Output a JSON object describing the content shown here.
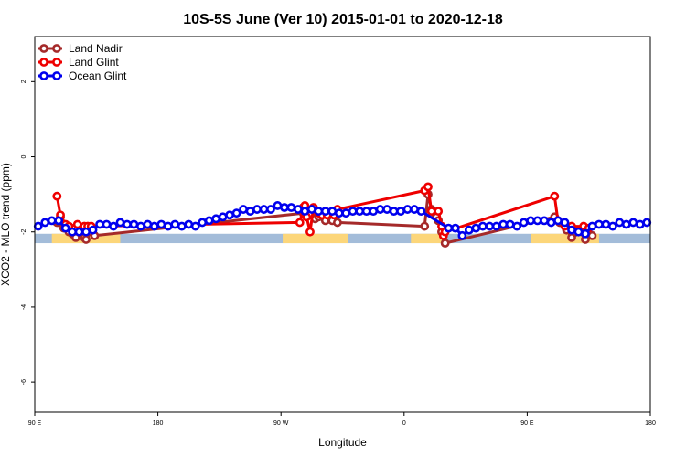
{
  "chart_data": {
    "type": "line",
    "title": "10S-5S June (Ver 10)   2015-01-01 to 2020-12-18",
    "xlabel": "Longitude",
    "ylabel": "XCO2 - MLO trend (ppm)",
    "xlim": [
      90,
      450
    ],
    "ylim": [
      -6.8,
      3.2
    ],
    "x_ticks": [
      {
        "value": 90,
        "label": "90 E"
      },
      {
        "value": 162,
        "label": "180"
      },
      {
        "value": 234,
        "label": "90 W"
      },
      {
        "value": 306,
        "label": "0"
      },
      {
        "value": 378,
        "label": "90 E"
      },
      {
        "value": 450,
        "label": "180"
      }
    ],
    "y_ticks": [
      {
        "value": 2,
        "label": "2"
      },
      {
        "value": 0,
        "label": "0"
      },
      {
        "value": -2,
        "label": "-2"
      },
      {
        "value": -4,
        "label": "-4"
      },
      {
        "value": -6,
        "label": "-6"
      }
    ],
    "legend_position": "top-left",
    "grid": false,
    "land_band": {
      "y_top": -2.05,
      "y_bottom": -2.3,
      "ocean_color": "#a3bcd9",
      "land_color": "#fcd67a",
      "land_segments": [
        [
          100,
          140
        ],
        [
          235,
          273
        ],
        [
          310,
          330
        ],
        [
          380,
          420
        ]
      ]
    },
    "series": [
      {
        "name": "Land Nadir",
        "color": "#a52a2a",
        "points": [
          [
            103,
            -1.75
          ],
          [
            104,
            -1.75
          ],
          [
            105,
            -1.6
          ],
          [
            107,
            -1.9
          ],
          [
            110,
            -2.0
          ],
          [
            112,
            -2.05
          ],
          [
            114,
            -2.15
          ],
          [
            119,
            -2.15
          ],
          [
            120,
            -2.2
          ],
          [
            123,
            -2.0
          ],
          [
            125,
            -2.1
          ],
          [
            247,
            -1.5
          ],
          [
            251,
            -1.55
          ],
          [
            254,
            -1.65
          ],
          [
            256,
            -1.6
          ],
          [
            260,
            -1.7
          ],
          [
            264,
            -1.7
          ],
          [
            267,
            -1.75
          ],
          [
            318,
            -1.85
          ],
          [
            320,
            -1.0
          ],
          [
            322,
            -1.4
          ],
          [
            324,
            -1.5
          ],
          [
            325,
            -1.6
          ],
          [
            326,
            -1.7
          ],
          [
            328,
            -2.0
          ],
          [
            330,
            -2.3
          ],
          [
            394,
            -1.6
          ],
          [
            397,
            -1.75
          ],
          [
            401,
            -1.95
          ],
          [
            404,
            -2.15
          ],
          [
            410,
            -2.0
          ],
          [
            412,
            -2.2
          ],
          [
            416,
            -2.1
          ]
        ]
      },
      {
        "name": "Land Glint",
        "color": "#ee0000",
        "points": [
          [
            103,
            -1.05
          ],
          [
            105,
            -1.55
          ],
          [
            108,
            -1.8
          ],
          [
            110,
            -1.85
          ],
          [
            115,
            -1.8
          ],
          [
            119,
            -1.85
          ],
          [
            121,
            -1.85
          ],
          [
            123,
            -1.85
          ],
          [
            245,
            -1.75
          ],
          [
            247,
            -1.35
          ],
          [
            248,
            -1.3
          ],
          [
            249,
            -1.6
          ],
          [
            251,
            -2.0
          ],
          [
            253,
            -1.35
          ],
          [
            256,
            -1.5
          ],
          [
            258,
            -1.55
          ],
          [
            261,
            -1.55
          ],
          [
            265,
            -1.55
          ],
          [
            267,
            -1.4
          ],
          [
            318,
            -0.9
          ],
          [
            320,
            -0.8
          ],
          [
            322,
            -1.45
          ],
          [
            326,
            -1.45
          ],
          [
            328,
            -1.85
          ],
          [
            329,
            -2.1
          ],
          [
            330,
            -2.0
          ],
          [
            394,
            -1.05
          ],
          [
            396,
            -1.7
          ],
          [
            400,
            -1.85
          ],
          [
            404,
            -1.85
          ],
          [
            411,
            -1.85
          ],
          [
            414,
            -1.9
          ]
        ]
      },
      {
        "name": "Ocean Glint",
        "color": "#0000ee",
        "points": [
          [
            92,
            -1.85
          ],
          [
            96,
            -1.75
          ],
          [
            100,
            -1.7
          ],
          [
            104,
            -1.7
          ],
          [
            108,
            -1.9
          ],
          [
            112,
            -2.0
          ],
          [
            116,
            -2.0
          ],
          [
            120,
            -2.0
          ],
          [
            124,
            -1.95
          ],
          [
            128,
            -1.8
          ],
          [
            132,
            -1.8
          ],
          [
            136,
            -1.85
          ],
          [
            140,
            -1.75
          ],
          [
            144,
            -1.8
          ],
          [
            148,
            -1.8
          ],
          [
            152,
            -1.85
          ],
          [
            156,
            -1.8
          ],
          [
            160,
            -1.85
          ],
          [
            164,
            -1.8
          ],
          [
            168,
            -1.85
          ],
          [
            172,
            -1.8
          ],
          [
            176,
            -1.85
          ],
          [
            180,
            -1.8
          ],
          [
            184,
            -1.85
          ],
          [
            188,
            -1.75
          ],
          [
            192,
            -1.7
          ],
          [
            196,
            -1.65
          ],
          [
            200,
            -1.6
          ],
          [
            204,
            -1.55
          ],
          [
            208,
            -1.5
          ],
          [
            212,
            -1.4
          ],
          [
            216,
            -1.45
          ],
          [
            220,
            -1.4
          ],
          [
            224,
            -1.4
          ],
          [
            228,
            -1.4
          ],
          [
            232,
            -1.3
          ],
          [
            236,
            -1.35
          ],
          [
            240,
            -1.35
          ],
          [
            244,
            -1.4
          ],
          [
            248,
            -1.45
          ],
          [
            252,
            -1.4
          ],
          [
            256,
            -1.45
          ],
          [
            260,
            -1.45
          ],
          [
            264,
            -1.45
          ],
          [
            268,
            -1.5
          ],
          [
            272,
            -1.5
          ],
          [
            276,
            -1.45
          ],
          [
            280,
            -1.45
          ],
          [
            284,
            -1.45
          ],
          [
            288,
            -1.45
          ],
          [
            292,
            -1.4
          ],
          [
            296,
            -1.4
          ],
          [
            300,
            -1.45
          ],
          [
            304,
            -1.45
          ],
          [
            308,
            -1.4
          ],
          [
            312,
            -1.4
          ],
          [
            316,
            -1.45
          ],
          [
            332,
            -1.9
          ],
          [
            336,
            -1.9
          ],
          [
            340,
            -2.1
          ],
          [
            344,
            -1.95
          ],
          [
            348,
            -1.9
          ],
          [
            352,
            -1.85
          ],
          [
            356,
            -1.85
          ],
          [
            360,
            -1.85
          ],
          [
            364,
            -1.8
          ],
          [
            368,
            -1.8
          ],
          [
            372,
            -1.85
          ],
          [
            376,
            -1.75
          ],
          [
            380,
            -1.7
          ],
          [
            384,
            -1.7
          ],
          [
            388,
            -1.7
          ],
          [
            392,
            -1.75
          ],
          [
            396,
            -1.7
          ],
          [
            400,
            -1.75
          ],
          [
            404,
            -1.95
          ],
          [
            408,
            -2.0
          ],
          [
            412,
            -2.05
          ],
          [
            416,
            -1.85
          ],
          [
            420,
            -1.8
          ],
          [
            424,
            -1.8
          ],
          [
            428,
            -1.85
          ],
          [
            432,
            -1.75
          ],
          [
            436,
            -1.8
          ],
          [
            440,
            -1.75
          ],
          [
            444,
            -1.8
          ],
          [
            448,
            -1.75
          ]
        ]
      }
    ]
  }
}
